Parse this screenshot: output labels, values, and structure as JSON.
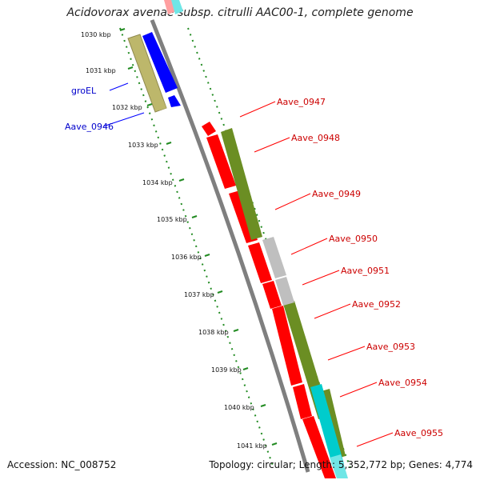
{
  "title": "Acidovorax avenae subsp. citrulli AAC00-1, complete genome",
  "footer": {
    "accession": "Accession: NC_008752",
    "summary": "Topology: circular; Length: 5,352,772 bp; Genes: 4,774"
  },
  "colors": {
    "backbone": "#7f7f7f",
    "cds_forward": "#ff0000",
    "cds_reverse": "#0000ff",
    "olive": "#6b8e23",
    "khaki": "#bdb76b",
    "gray": "#bfbfbf",
    "cyan": "#00cccc",
    "tick": "#228b22",
    "label_red": "#cc0000",
    "label_blue": "#0000cc"
  },
  "ruler_ticks": [
    "1030 kbp",
    "1031 kbp",
    "1032 kbp",
    "1033 kbp",
    "1034 kbp",
    "1035 kbp",
    "1036 kbp",
    "1037 kbp",
    "1038 kbp",
    "1039 kbp",
    "1040 kbp",
    "1041 kbp"
  ],
  "genes_right": [
    "Aave_0947",
    "Aave_0948",
    "Aave_0949",
    "Aave_0950",
    "Aave_0951",
    "Aave_0952",
    "Aave_0953",
    "Aave_0954",
    "Aave_0955"
  ],
  "genes_left": [
    "groEL",
    "Aave_0946"
  ]
}
